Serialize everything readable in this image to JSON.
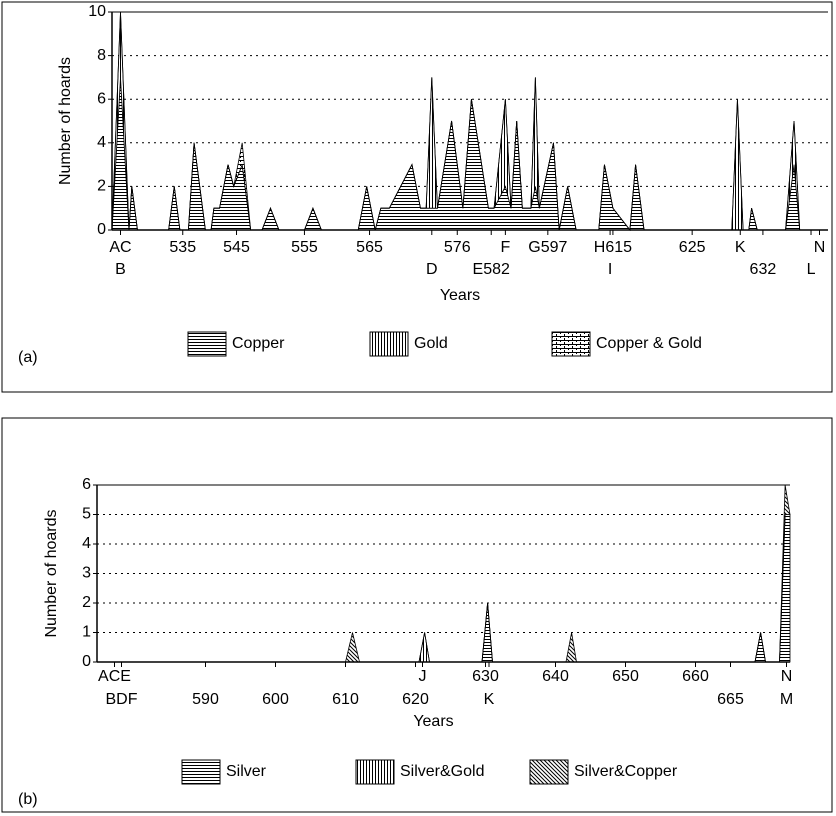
{
  "chart_data": [
    {
      "type": "area",
      "stacked": true,
      "panel_label": "(a)",
      "x_label": "Years",
      "y_label": "Number of hoards",
      "xlim": [
        522,
        648.5
      ],
      "ylim": [
        0,
        10
      ],
      "yticks": [
        0,
        2,
        4,
        6,
        8,
        10
      ],
      "grid": true,
      "xticks": [
        {
          "value": 523.5,
          "label": "AC"
        },
        {
          "value": 534.5,
          "label": "535"
        },
        {
          "value": 544,
          "label": "545"
        },
        {
          "value": 556,
          "label": "555"
        },
        {
          "value": 567.5,
          "label": "565"
        },
        {
          "value": 583,
          "label": "576"
        },
        {
          "value": 591.5,
          "label": "F"
        },
        {
          "value": 599,
          "label": "G597"
        },
        {
          "value": 610.5,
          "label": "H615"
        },
        {
          "value": 624.5,
          "label": "625"
        },
        {
          "value": 633,
          "label": "K"
        },
        {
          "value": 647,
          "label": "N"
        }
      ],
      "xticks_lower": [
        {
          "value": 523.5,
          "label": "B"
        },
        {
          "value": 578.5,
          "label": "D"
        },
        {
          "value": 589,
          "label": "E582"
        },
        {
          "value": 610,
          "label": "I"
        },
        {
          "value": 637,
          "label": "632"
        },
        {
          "value": 645.5,
          "label": "L"
        }
      ],
      "x": [
        522,
        523.5,
        525,
        525.5,
        526.5,
        532,
        533,
        534,
        535.5,
        536.5,
        538.5,
        539.5,
        540,
        541,
        542.5,
        543.5,
        545,
        546.5,
        548.5,
        550,
        551.5,
        556,
        557.5,
        559,
        565.5,
        567,
        568.5,
        569.5,
        571,
        573,
        575,
        576.5,
        577.5,
        578.5,
        579.5,
        582,
        584,
        585.5,
        588.5,
        589.5,
        591.5,
        592.5,
        593.5,
        594.5,
        596,
        596.8,
        597.5,
        600,
        601,
        602.5,
        604,
        608,
        609,
        610.5,
        613.5,
        614.5,
        616,
        631.5,
        632.5,
        633.5,
        634.5,
        635,
        636,
        641,
        642.5,
        643.5
      ],
      "series": [
        {
          "name": "Copper",
          "pattern": "horizontal",
          "color": "#000000",
          "values": [
            0,
            7,
            0,
            2,
            0,
            0,
            2,
            0,
            0,
            4,
            0,
            0,
            1,
            1,
            3,
            2,
            3,
            0,
            0,
            1,
            0,
            0,
            1,
            0,
            0,
            2,
            0,
            1,
            1,
            2,
            3,
            1,
            1,
            1,
            1,
            5,
            1,
            6,
            1,
            1,
            2,
            1,
            5,
            1,
            1,
            2,
            1,
            4,
            0,
            2,
            0,
            0,
            3,
            1,
            0,
            3,
            0,
            0,
            0,
            0,
            0,
            1,
            0,
            0,
            3,
            0
          ]
        },
        {
          "name": "Gold",
          "pattern": "vertical",
          "color": "#000000",
          "values": [
            0,
            3,
            0,
            0,
            0,
            0,
            0,
            0,
            0,
            0,
            0,
            0,
            0,
            0,
            0,
            0,
            0,
            0,
            0,
            0,
            0,
            0,
            0,
            0,
            0,
            0,
            0,
            0,
            0,
            0,
            0,
            0,
            0,
            6,
            0,
            0,
            0,
            0,
            0,
            0,
            4,
            0,
            0,
            0,
            0,
            5,
            0,
            0,
            0,
            0,
            0,
            0,
            0,
            0,
            0,
            0,
            0,
            0,
            6,
            0,
            0,
            0,
            0,
            0,
            2,
            0
          ]
        },
        {
          "name": "Copper & Gold",
          "pattern": "brick",
          "color": "#000000",
          "values": [
            0,
            0,
            0,
            0,
            0,
            0,
            0,
            0,
            0,
            0,
            0,
            0,
            0,
            0,
            0,
            0,
            1,
            0,
            0,
            0,
            0,
            0,
            0,
            0,
            0,
            0,
            0,
            0,
            0,
            0,
            0,
            0,
            0,
            0,
            0,
            0,
            0,
            0,
            0,
            0,
            0,
            0,
            0,
            0,
            0,
            0,
            0,
            0,
            0,
            0,
            0,
            0,
            0,
            0,
            0,
            0,
            0,
            0,
            0,
            0,
            0,
            0,
            0,
            0,
            0,
            0
          ]
        }
      ]
    },
    {
      "type": "area",
      "stacked": true,
      "panel_label": "(b)",
      "x_label": "Years",
      "y_label": "Number of hoards",
      "xlim": [
        574.5,
        673.5
      ],
      "ylim": [
        0,
        6
      ],
      "yticks": [
        0,
        1,
        2,
        3,
        4,
        5,
        6
      ],
      "grid": true,
      "xticks": [
        {
          "value": 577,
          "label": "ACE"
        },
        {
          "value": 621,
          "label": "J"
        },
        630,
        640,
        650,
        660,
        {
          "value": 673,
          "label": "N"
        }
      ],
      "xticks_lower": [
        {
          "value": 578,
          "label": "BDF"
        },
        590,
        600,
        610,
        620,
        {
          "value": 630.5,
          "label": "K"
        },
        665,
        {
          "value": 673,
          "label": "M"
        }
      ],
      "x": [
        574.5,
        610,
        611,
        612,
        620.5,
        621.3,
        622,
        629.5,
        630.3,
        631,
        641.5,
        642.3,
        643,
        668.5,
        669.3,
        670,
        672,
        672.8,
        673.5
      ],
      "series": [
        {
          "name": "Silver",
          "pattern": "horizontal",
          "color": "#000000",
          "values": [
            0,
            0,
            0,
            0,
            0,
            0,
            0,
            0,
            2,
            0,
            0,
            0,
            0,
            0,
            1,
            0,
            0,
            5,
            5
          ]
        },
        {
          "name": "Silver&Gold",
          "pattern": "vertical",
          "color": "#000000",
          "values": [
            0,
            0,
            0,
            0,
            0,
            1,
            0,
            0,
            0,
            0,
            0,
            0,
            0,
            0,
            0,
            0,
            0,
            0,
            0
          ]
        },
        {
          "name": "Silver&Copper",
          "pattern": "diagonal",
          "color": "#000000",
          "values": [
            0,
            0,
            1,
            0,
            0,
            0,
            0,
            0,
            0,
            0,
            0,
            1,
            0,
            0,
            0,
            0,
            0,
            1,
            0
          ]
        }
      ]
    }
  ]
}
